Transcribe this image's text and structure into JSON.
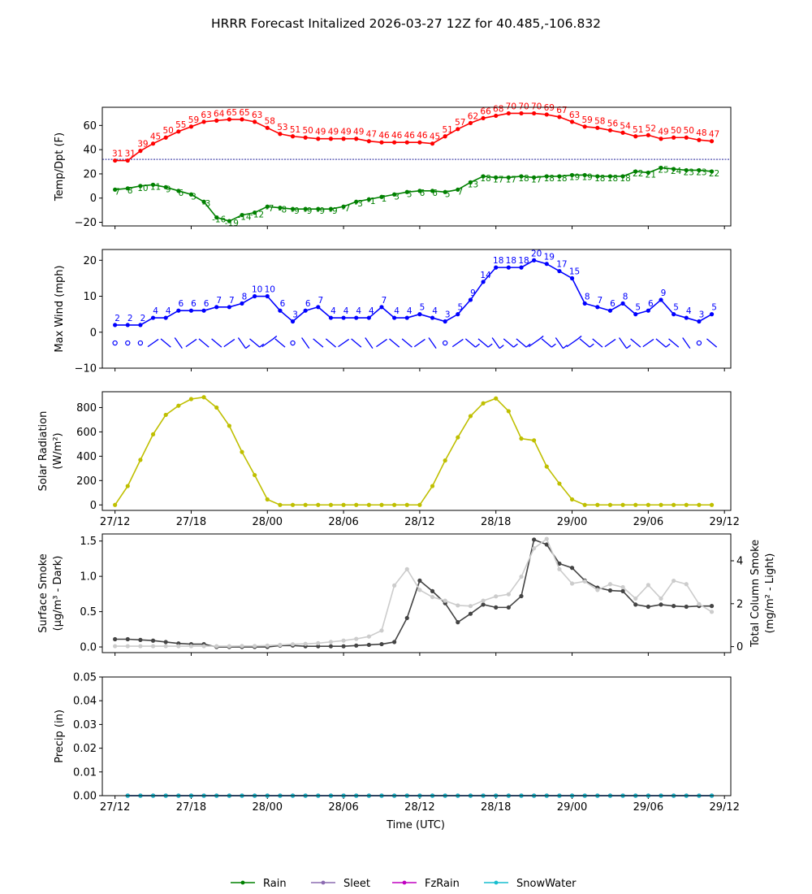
{
  "figure": {
    "title": "HRRR Forecast Initalized 2026-03-27 12Z for 40.485,-106.832",
    "xlabel": "Time (UTC)",
    "x_tick_labels": [
      "27/12",
      "27/18",
      "28/00",
      "28/06",
      "28/12",
      "28/18",
      "29/00",
      "29/06",
      "29/12"
    ],
    "x_tick_hours": [
      0,
      6,
      12,
      18,
      24,
      30,
      36,
      42,
      48
    ],
    "x_range_hours": [
      -1,
      48.5
    ]
  },
  "chart_data": [
    {
      "id": "temp",
      "type": "line",
      "ylabel": "Temp/Dpt (F)",
      "ylim": [
        -23,
        75
      ],
      "yticks": [
        -20,
        0,
        20,
        40,
        60
      ],
      "freezing_line": 32,
      "freezing_line_color": "#00008b",
      "series": [
        {
          "name": "Temperature",
          "color": "#ff0000",
          "values": [
            31,
            31,
            39,
            45,
            50,
            55,
            59,
            63,
            64,
            65,
            65,
            63,
            58,
            53,
            51,
            50,
            49,
            49,
            49,
            49,
            47,
            46,
            46,
            46,
            46,
            45,
            51,
            57,
            62,
            66,
            68,
            70,
            70,
            70,
            69,
            67,
            63,
            59,
            58,
            56,
            54,
            51,
            52,
            49,
            50,
            50,
            48,
            47
          ]
        },
        {
          "name": "Dewpoint",
          "color": "#008000",
          "values": [
            7,
            8,
            10,
            11,
            9,
            6,
            3,
            -3,
            -16,
            -19,
            -14,
            -12,
            -7,
            -8,
            -9,
            -9,
            -9,
            -9,
            -7,
            -3,
            -1,
            1,
            3,
            5,
            6,
            6,
            5,
            7,
            13,
            18,
            17,
            17,
            18,
            17,
            18,
            18,
            19,
            19,
            18,
            18,
            18,
            22,
            21,
            25,
            24,
            23,
            23,
            22
          ]
        }
      ]
    },
    {
      "id": "wind",
      "type": "line",
      "ylabel": "Max Wind (mph)",
      "ylim": [
        -10,
        23
      ],
      "yticks": [
        -10,
        0,
        10,
        20
      ],
      "series": [
        {
          "name": "Max Wind",
          "color": "#0000ff",
          "values": [
            2,
            2,
            2,
            4,
            4,
            6,
            6,
            6,
            7,
            7,
            8,
            10,
            10,
            6,
            3,
            6,
            7,
            4,
            4,
            4,
            4,
            7,
            4,
            4,
            5,
            4,
            3,
            5,
            9,
            14,
            18,
            18,
            18,
            20,
            19,
            17,
            15,
            8,
            7,
            6,
            8,
            5,
            6,
            9,
            5,
            4,
            3,
            5
          ]
        }
      ],
      "barb_color": "#0000ff",
      "barb_y": -3
    },
    {
      "id": "solar",
      "type": "line",
      "ylabel_lines": [
        "Solar Radiation",
        "(W/m²)"
      ],
      "ylim": [
        -45,
        930
      ],
      "yticks": [
        0,
        200,
        400,
        600,
        800
      ],
      "series": [
        {
          "name": "Solar Radiation",
          "color": "#bfbf00",
          "values": [
            0,
            155,
            370,
            580,
            740,
            815,
            870,
            885,
            800,
            650,
            435,
            245,
            45,
            0,
            0,
            0,
            0,
            0,
            0,
            0,
            0,
            0,
            0,
            0,
            0,
            155,
            365,
            555,
            730,
            835,
            875,
            770,
            545,
            530,
            315,
            175,
            45,
            0,
            0,
            0,
            0,
            0,
            0,
            0,
            0,
            0,
            0,
            0
          ]
        }
      ]
    },
    {
      "id": "smoke",
      "type": "line",
      "ylabel_lines": [
        "Surface Smoke",
        "(µg/m³ - Dark)"
      ],
      "ylabel_right_lines": [
        "Total Column Smoke",
        "(mg/m² - Light)"
      ],
      "ylim": [
        -0.08,
        1.6
      ],
      "yticks": [
        0.0,
        0.5,
        1.0,
        1.5
      ],
      "ylim_right": [
        -0.28,
        5.25
      ],
      "yticks_right": [
        0,
        2,
        4
      ],
      "series": [
        {
          "name": "Surface Smoke",
          "color": "#444444",
          "axis": "left",
          "values": [
            0.11,
            0.11,
            0.1,
            0.09,
            0.07,
            0.05,
            0.04,
            0.04,
            0.0,
            0.0,
            0.0,
            0.0,
            0.0,
            0.02,
            0.02,
            0.01,
            0.01,
            0.01,
            0.01,
            0.02,
            0.03,
            0.04,
            0.07,
            0.41,
            0.94,
            0.79,
            0.62,
            0.35,
            0.47,
            0.6,
            0.56,
            0.56,
            0.72,
            1.52,
            1.45,
            1.18,
            1.12,
            0.94,
            0.84,
            0.8,
            0.79,
            0.6,
            0.57,
            0.6,
            0.58,
            0.57,
            0.58,
            0.58
          ]
        },
        {
          "name": "Total Column Smoke",
          "color": "#cccccc",
          "axis": "right",
          "values": [
            0.02,
            0.02,
            0.02,
            0.02,
            0.02,
            0.02,
            0.02,
            0.02,
            0.02,
            0.02,
            0.03,
            0.03,
            0.05,
            0.08,
            0.11,
            0.13,
            0.16,
            0.22,
            0.28,
            0.36,
            0.47,
            0.75,
            2.85,
            3.61,
            2.64,
            2.31,
            2.14,
            1.92,
            1.89,
            2.14,
            2.34,
            2.44,
            3.26,
            4.58,
            5.02,
            3.61,
            2.94,
            3.04,
            2.64,
            2.91,
            2.77,
            2.24,
            2.87,
            2.24,
            3.07,
            2.91,
            1.98,
            1.62
          ]
        }
      ]
    },
    {
      "id": "precip",
      "type": "line",
      "ylabel": "Precip (in)",
      "ylim": [
        0,
        0.05
      ],
      "yticks": [
        0.0,
        0.01,
        0.02,
        0.03,
        0.04,
        0.05
      ],
      "ytick_labels": [
        "0.00",
        "0.01",
        "0.02",
        "0.03",
        "0.04",
        "0.05"
      ],
      "series": [
        {
          "name": "Rain",
          "color": "#008000",
          "start_hour": 1,
          "values": [
            0,
            0,
            0,
            0,
            0,
            0,
            0,
            0,
            0,
            0,
            0,
            0,
            0,
            0,
            0,
            0,
            0,
            0,
            0,
            0,
            0,
            0,
            0,
            0,
            0,
            0,
            0,
            0,
            0,
            0,
            0,
            0,
            0,
            0,
            0,
            0,
            0,
            0,
            0,
            0,
            0,
            0,
            0,
            0,
            0,
            0,
            0
          ]
        },
        {
          "name": "Sleet",
          "color": "#8c6bb1",
          "start_hour": 1,
          "values": [
            0,
            0,
            0,
            0,
            0,
            0,
            0,
            0,
            0,
            0,
            0,
            0,
            0,
            0,
            0,
            0,
            0,
            0,
            0,
            0,
            0,
            0,
            0,
            0,
            0,
            0,
            0,
            0,
            0,
            0,
            0,
            0,
            0,
            0,
            0,
            0,
            0,
            0,
            0,
            0,
            0,
            0,
            0,
            0,
            0,
            0,
            0
          ]
        },
        {
          "name": "FzRain",
          "color": "#c000c0",
          "start_hour": 1,
          "values": [
            0,
            0,
            0,
            0,
            0,
            0,
            0,
            0,
            0,
            0,
            0,
            0,
            0,
            0,
            0,
            0,
            0,
            0,
            0,
            0,
            0,
            0,
            0,
            0,
            0,
            0,
            0,
            0,
            0,
            0,
            0,
            0,
            0,
            0,
            0,
            0,
            0,
            0,
            0,
            0,
            0,
            0,
            0,
            0,
            0,
            0,
            0
          ]
        },
        {
          "name": "SnowWater",
          "color": "#17becf",
          "start_hour": 1,
          "values": [
            0,
            0,
            0,
            0,
            0,
            0,
            0,
            0,
            0,
            0,
            0,
            0,
            0,
            0,
            0,
            0,
            0,
            0,
            0,
            0,
            0,
            0,
            0,
            0,
            0,
            0,
            0,
            0,
            0,
            0,
            0,
            0,
            0,
            0,
            0,
            0,
            0,
            0,
            0,
            0,
            0,
            0,
            0,
            0,
            0,
            0,
            0
          ]
        }
      ]
    }
  ],
  "legend": {
    "position": "bottom-center",
    "items": [
      {
        "label": "Rain",
        "color": "#008000"
      },
      {
        "label": "Sleet",
        "color": "#8c6bb1"
      },
      {
        "label": "FzRain",
        "color": "#c000c0"
      },
      {
        "label": "SnowWater",
        "color": "#17becf"
      }
    ]
  }
}
